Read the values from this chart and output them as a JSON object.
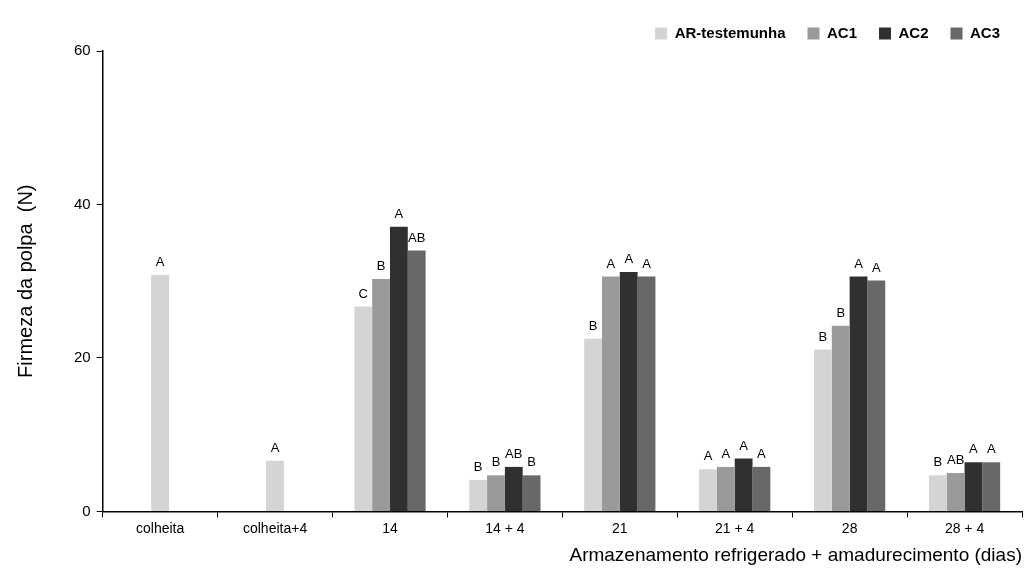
{
  "chart_data": {
    "type": "bar",
    "xlabel": "Armazenamento refrigerado + amadurecimento (dias)",
    "ylabel": "Firmeza da polpa  (N)",
    "categories": [
      "colheita",
      "colheita+4",
      "14",
      "14 + 4",
      "21",
      "21 + 4",
      "28",
      "28 + 4"
    ],
    "series": [
      {
        "name": "AR-testemunha",
        "color": "#d4d4d4",
        "values": [
          30.8,
          6.6,
          26.7,
          4.1,
          22.5,
          5.5,
          21.1,
          4.7
        ],
        "value_labels": [
          "A",
          "A",
          "C",
          "B",
          "B",
          "A",
          "B",
          "B"
        ]
      },
      {
        "name": "AC1",
        "color": "#9a9a9a",
        "values": [
          null,
          null,
          30.3,
          4.7,
          30.6,
          5.8,
          24.2,
          5.0
        ],
        "value_labels": [
          null,
          null,
          "B",
          "B",
          "A",
          "A",
          "B",
          "AB"
        ]
      },
      {
        "name": "AC2",
        "color": "#303030",
        "values": [
          null,
          null,
          37.1,
          5.8,
          31.2,
          6.9,
          30.6,
          6.4
        ],
        "value_labels": [
          null,
          null,
          "A",
          "AB",
          "A",
          "A",
          "A",
          "A"
        ]
      },
      {
        "name": "AC3",
        "color": "#686868",
        "values": [
          null,
          null,
          34.0,
          4.7,
          30.6,
          5.8,
          30.1,
          6.4
        ],
        "value_labels": [
          null,
          null,
          "AB",
          "B",
          "A",
          "A",
          "A",
          "A"
        ]
      }
    ],
    "ylim": [
      0,
      60
    ],
    "yticks": [
      0,
      20,
      40,
      60
    ],
    "grid": false,
    "legend": "top right"
  }
}
